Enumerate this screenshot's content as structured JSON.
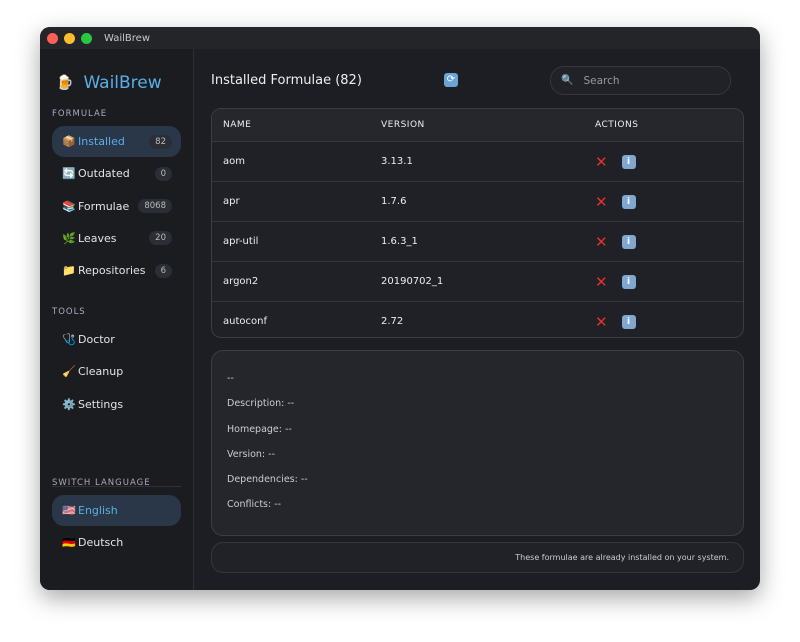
{
  "window": {
    "title": "WailBrew"
  },
  "sidebar": {
    "brand": "WailBrew",
    "sections": {
      "formulae": "FORMULAE",
      "tools": "TOOLS",
      "language": "SWITCH LANGUAGE"
    },
    "items": [
      {
        "icon": "📦",
        "label": "Installed",
        "count": "82",
        "active": true
      },
      {
        "icon": "🔄",
        "label": "Outdated",
        "count": "0"
      },
      {
        "icon": "📚",
        "label": "Formulae",
        "count": "8068"
      },
      {
        "icon": "🌿",
        "label": "Leaves",
        "count": "20"
      },
      {
        "icon": "📁",
        "label": "Repositories",
        "count": "6"
      }
    ],
    "tools": [
      {
        "icon": "🩺",
        "label": "Doctor"
      },
      {
        "icon": "🧹",
        "label": "Cleanup"
      },
      {
        "icon": "⚙️",
        "label": "Settings"
      }
    ],
    "languages": [
      {
        "icon": "🇺🇸",
        "label": "English",
        "active": true
      },
      {
        "icon": "🇩🇪",
        "label": "Deutsch"
      }
    ]
  },
  "main": {
    "title": "Installed Formulae (82)",
    "search_placeholder": "Search",
    "columns": [
      "NAME",
      "VERSION",
      "ACTIONS"
    ],
    "rows": [
      {
        "name": "aom",
        "version": "3.13.1"
      },
      {
        "name": "apr",
        "version": "1.7.6"
      },
      {
        "name": "apr-util",
        "version": "1.6.3_1"
      },
      {
        "name": "argon2",
        "version": "20190702_1"
      },
      {
        "name": "autoconf",
        "version": "2.72"
      }
    ],
    "details": {
      "name": "--",
      "description": "Description: --",
      "homepage": "Homepage: --",
      "version": "Version: --",
      "dependencies": "Dependencies: --",
      "conflicts": "Conflicts: --"
    },
    "footer": "These formulae are already installed on your system."
  },
  "colors": {
    "accent": "#5aaee8",
    "danger": "#e0312b"
  }
}
